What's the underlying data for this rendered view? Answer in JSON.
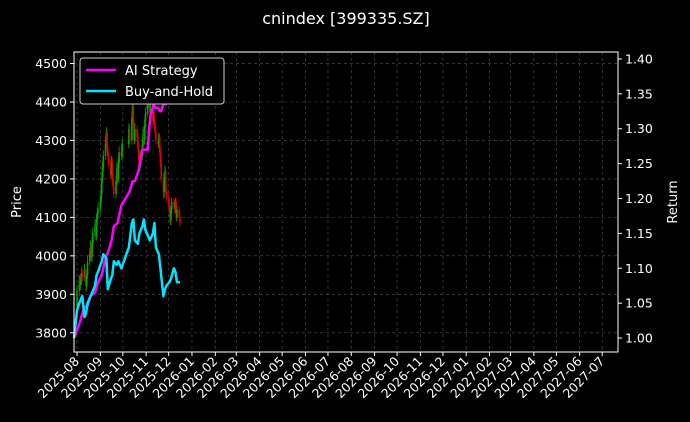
{
  "chart_data": {
    "type": "line",
    "title": "cnindex [399335.SZ]",
    "ylabel": "Price",
    "y2label": "Return",
    "ylim": [
      3750,
      4530
    ],
    "y2lim": [
      0.98,
      1.41
    ],
    "yticks": [
      3800,
      3900,
      4000,
      4100,
      4200,
      4300,
      4400,
      4500
    ],
    "y2ticks": [
      "1.00",
      "1.05",
      "1.10",
      "1.15",
      "1.20",
      "1.25",
      "1.30",
      "1.35",
      "1.40"
    ],
    "xlim": [
      "2025-07-28",
      "2027-07-22"
    ],
    "xticks": [
      "2025-08",
      "2025-09",
      "2025-10",
      "2025-11",
      "2025-12",
      "2026-01",
      "2026-02",
      "2026-03",
      "2026-04",
      "2026-05",
      "2026-06",
      "2026-07",
      "2026-08",
      "2026-09",
      "2026-10",
      "2026-11",
      "2026-12",
      "2027-01",
      "2027-02",
      "2027-03",
      "2027-04",
      "2027-05",
      "2027-06",
      "2027-07"
    ],
    "grid": true,
    "legend_position": "top-left",
    "colors": {
      "background": "#000000",
      "up": "#00aa00",
      "down": "#dd0000"
    },
    "candlestick": {
      "dates": [
        "2025-08-01",
        "2025-08-04",
        "2025-08-05",
        "2025-08-06",
        "2025-08-07",
        "2025-08-08",
        "2025-08-11",
        "2025-08-12",
        "2025-08-13",
        "2025-08-14",
        "2025-08-15",
        "2025-08-18",
        "2025-08-19",
        "2025-08-20",
        "2025-08-21",
        "2025-08-22",
        "2025-08-25",
        "2025-08-26",
        "2025-08-27",
        "2025-08-28",
        "2025-08-29",
        "2025-09-01",
        "2025-09-02",
        "2025-09-03",
        "2025-09-04",
        "2025-09-05",
        "2025-09-08",
        "2025-09-09",
        "2025-09-10",
        "2025-09-11",
        "2025-09-12",
        "2025-09-15",
        "2025-09-16",
        "2025-09-17",
        "2025-09-18",
        "2025-09-19",
        "2025-09-22",
        "2025-09-23",
        "2025-09-24",
        "2025-09-25",
        "2025-09-26",
        "2025-09-29",
        "2025-09-30",
        "2025-10-09",
        "2025-10-10",
        "2025-10-13",
        "2025-10-14",
        "2025-10-15",
        "2025-10-16",
        "2025-10-17",
        "2025-10-20",
        "2025-10-21",
        "2025-10-22",
        "2025-10-23",
        "2025-10-24",
        "2025-10-27",
        "2025-10-28",
        "2025-10-29",
        "2025-10-30",
        "2025-10-31",
        "2025-11-03",
        "2025-11-04",
        "2025-11-05",
        "2025-11-06",
        "2025-11-07",
        "2025-11-10",
        "2025-11-11",
        "2025-11-12",
        "2025-11-13",
        "2025-11-14",
        "2025-11-17",
        "2025-11-18",
        "2025-11-19",
        "2025-11-20",
        "2025-11-21",
        "2025-11-24",
        "2025-11-25",
        "2025-11-26",
        "2025-11-27",
        "2025-11-28",
        "2025-12-01",
        "2025-12-02",
        "2025-12-03",
        "2025-12-04",
        "2025-12-05",
        "2025-12-08",
        "2025-12-09",
        "2025-12-10",
        "2025-12-11",
        "2025-12-12",
        "2025-12-15",
        "2025-12-16"
      ],
      "open": [
        3870,
        3910,
        3935,
        3925,
        3940,
        3955,
        3945,
        3965,
        3940,
        3920,
        3950,
        3985,
        4005,
        4025,
        3995,
        4035,
        4060,
        4080,
        4050,
        4095,
        4110,
        4120,
        4140,
        4160,
        4200,
        4230,
        4260,
        4290,
        4320,
        4280,
        4260,
        4240,
        4210,
        4245,
        4200,
        4180,
        4160,
        4195,
        4230,
        4200,
        4240,
        4270,
        4260,
        4290,
        4330,
        4300,
        4360,
        4390,
        4340,
        4300,
        4330,
        4310,
        4280,
        4250,
        4230,
        4260,
        4290,
        4320,
        4300,
        4340,
        4370,
        4395,
        4420,
        4400,
        4370,
        4380,
        4350,
        4360,
        4340,
        4320,
        4300,
        4290,
        4310,
        4270,
        4240,
        4200,
        4165,
        4190,
        4220,
        4170,
        4150,
        4135,
        4110,
        4090,
        4120,
        4140,
        4135,
        4120,
        4140,
        4100,
        4120,
        4105
      ],
      "close": [
        3910,
        3935,
        3925,
        3940,
        3955,
        3945,
        3965,
        3940,
        3920,
        3950,
        3985,
        4005,
        4025,
        3995,
        4035,
        4060,
        4080,
        4050,
        4095,
        4110,
        4120,
        4140,
        4160,
        4200,
        4230,
        4260,
        4290,
        4320,
        4280,
        4260,
        4240,
        4210,
        4245,
        4200,
        4180,
        4160,
        4195,
        4230,
        4200,
        4240,
        4270,
        4260,
        4290,
        4330,
        4300,
        4360,
        4390,
        4340,
        4300,
        4330,
        4310,
        4280,
        4250,
        4230,
        4260,
        4290,
        4320,
        4300,
        4340,
        4370,
        4395,
        4420,
        4400,
        4370,
        4380,
        4350,
        4360,
        4340,
        4320,
        4300,
        4290,
        4310,
        4270,
        4240,
        4200,
        4165,
        4190,
        4220,
        4170,
        4150,
        4135,
        4110,
        4090,
        4120,
        4140,
        4135,
        4120,
        4140,
        4100,
        4120,
        4105,
        4085
      ],
      "high": [
        3925,
        3950,
        3950,
        3955,
        3970,
        3965,
        3980,
        3970,
        3945,
        3965,
        4000,
        4020,
        4040,
        4030,
        4050,
        4075,
        4095,
        4085,
        4110,
        4125,
        4140,
        4155,
        4180,
        4215,
        4245,
        4275,
        4310,
        4335,
        4330,
        4290,
        4270,
        4250,
        4260,
        4255,
        4215,
        4190,
        4210,
        4245,
        4240,
        4255,
        4285,
        4285,
        4305,
        4345,
        4340,
        4375,
        4410,
        4400,
        4355,
        4345,
        4340,
        4325,
        4295,
        4265,
        4275,
        4305,
        4335,
        4330,
        4355,
        4385,
        4410,
        4435,
        4430,
        4415,
        4395,
        4390,
        4375,
        4375,
        4355,
        4335,
        4315,
        4320,
        4320,
        4285,
        4250,
        4215,
        4205,
        4235,
        4230,
        4180,
        4165,
        4150,
        4125,
        4130,
        4150,
        4150,
        4145,
        4150,
        4150,
        4130,
        4130,
        4115
      ],
      "low": [
        3860,
        3895,
        3915,
        3910,
        3925,
        3935,
        3935,
        3930,
        3905,
        3910,
        3940,
        3975,
        3995,
        3985,
        3985,
        4025,
        4050,
        4040,
        4040,
        4085,
        4100,
        4110,
        4130,
        4150,
        4190,
        4220,
        4250,
        4280,
        4270,
        4250,
        4230,
        4200,
        4200,
        4190,
        4170,
        4150,
        4150,
        4185,
        4190,
        4190,
        4230,
        4250,
        4250,
        4280,
        4290,
        4290,
        4350,
        4330,
        4290,
        4290,
        4300,
        4270,
        4240,
        4220,
        4220,
        4250,
        4280,
        4290,
        4290,
        4330,
        4360,
        4385,
        4390,
        4360,
        4360,
        4340,
        4340,
        4330,
        4310,
        4290,
        4280,
        4280,
        4260,
        4230,
        4190,
        4150,
        4150,
        4180,
        4160,
        4140,
        4125,
        4100,
        4080,
        4080,
        4110,
        4125,
        4110,
        4110,
        4090,
        4090,
        4100,
        4075
      ]
    },
    "series": [
      {
        "name": "AI Strategy",
        "color": "#ff00ff",
        "axis": "right",
        "x": [
          "2025-07-28",
          "2025-08-04",
          "2025-08-08",
          "2025-08-11",
          "2025-08-15",
          "2025-08-19",
          "2025-08-25",
          "2025-08-29",
          "2025-09-03",
          "2025-09-08",
          "2025-09-12",
          "2025-09-16",
          "2025-09-19",
          "2025-09-24",
          "2025-09-29",
          "2025-10-10",
          "2025-10-14",
          "2025-10-17",
          "2025-10-22",
          "2025-10-27",
          "2025-10-30",
          "2025-11-03",
          "2025-11-05",
          "2025-11-07",
          "2025-11-11",
          "2025-11-13",
          "2025-11-17",
          "2025-11-19",
          "2025-11-21",
          "2025-11-25",
          "2025-11-27",
          "2025-12-01",
          "2025-12-03"
        ],
        "values": [
          1.0,
          1.02,
          1.035,
          1.045,
          1.045,
          1.06,
          1.065,
          1.08,
          1.09,
          1.115,
          1.125,
          1.14,
          1.16,
          1.165,
          1.19,
          1.21,
          1.225,
          1.225,
          1.24,
          1.27,
          1.27,
          1.27,
          1.3,
          1.32,
          1.335,
          1.33,
          1.33,
          1.325,
          1.325,
          1.34,
          1.335,
          1.345,
          1.35
        ]
      },
      {
        "name": "Buy-and-Hold",
        "color": "#00e5ff",
        "axis": "right",
        "x": [
          "2025-07-28",
          "2025-08-01",
          "2025-08-04",
          "2025-08-06",
          "2025-08-08",
          "2025-08-11",
          "2025-08-13",
          "2025-08-15",
          "2025-08-19",
          "2025-08-21",
          "2025-08-25",
          "2025-08-27",
          "2025-08-29",
          "2025-09-03",
          "2025-09-05",
          "2025-09-09",
          "2025-09-11",
          "2025-09-15",
          "2025-09-17",
          "2025-09-19",
          "2025-09-23",
          "2025-09-25",
          "2025-09-29",
          "2025-10-09",
          "2025-10-13",
          "2025-10-15",
          "2025-10-17",
          "2025-10-21",
          "2025-10-23",
          "2025-10-27",
          "2025-10-29",
          "2025-10-31",
          "2025-11-04",
          "2025-11-06",
          "2025-11-10",
          "2025-11-12",
          "2025-11-14",
          "2025-11-18",
          "2025-11-20",
          "2025-11-24",
          "2025-11-26",
          "2025-11-28",
          "2025-12-02",
          "2025-12-04",
          "2025-12-08",
          "2025-12-10",
          "2025-12-12",
          "2025-12-16"
        ],
        "values": [
          1.0,
          1.04,
          1.05,
          1.055,
          1.06,
          1.03,
          1.035,
          1.05,
          1.06,
          1.065,
          1.075,
          1.09,
          1.095,
          1.11,
          1.12,
          1.115,
          1.07,
          1.085,
          1.09,
          1.11,
          1.105,
          1.11,
          1.1,
          1.13,
          1.165,
          1.17,
          1.14,
          1.135,
          1.15,
          1.16,
          1.17,
          1.155,
          1.145,
          1.14,
          1.15,
          1.165,
          1.13,
          1.12,
          1.1,
          1.06,
          1.07,
          1.075,
          1.08,
          1.085,
          1.1,
          1.095,
          1.08,
          1.08
        ]
      }
    ]
  }
}
